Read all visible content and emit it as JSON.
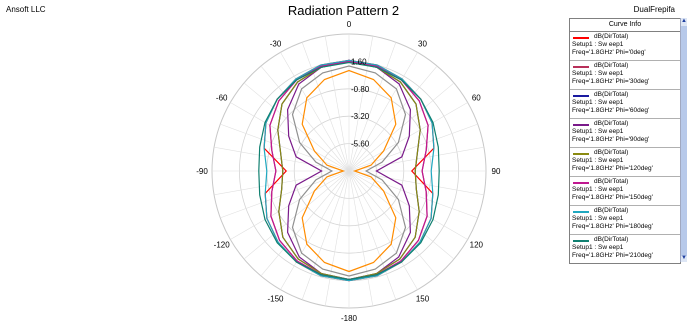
{
  "header": {
    "vendor": "Ansoft LLC",
    "project": "DualFrepifa"
  },
  "legend": {
    "title": "Curve Info",
    "entries": [
      {
        "name": "dB(DirTotal)",
        "setup": "Setup1 : Sw eep1",
        "params": "Freq='1.8GHz' Phi='0deg'",
        "color": "#ff0000"
      },
      {
        "name": "dB(DirTotal)",
        "setup": "Setup1 : Sw eep1",
        "params": "Freq='1.8GHz' Phi='30deg'",
        "color": "#b8305a"
      },
      {
        "name": "dB(DirTotal)",
        "setup": "Setup1 : Sw eep1",
        "params": "Freq='1.8GHz' Phi='60deg'",
        "color": "#1a1aa0"
      },
      {
        "name": "dB(DirTotal)",
        "setup": "Setup1 : Sw eep1",
        "params": "Freq='1.8GHz' Phi='90deg'",
        "color": "#7a1a8a"
      },
      {
        "name": "dB(DirTotal)",
        "setup": "Setup1 : Sw eep1",
        "params": "Freq='1.8GHz' Phi='120deg'",
        "color": "#8a8a10"
      },
      {
        "name": "dB(DirTotal)",
        "setup": "Setup1 : Sw eep1",
        "params": "Freq='1.8GHz' Phi='150deg'",
        "color": "#c01890"
      },
      {
        "name": "dB(DirTotal)",
        "setup": "Setup1 : Sw eep1",
        "params": "Freq='1.8GHz' Phi='180deg'",
        "color": "#20a8c0"
      },
      {
        "name": "dB(DirTotal)",
        "setup": "Setup1 : Sw eep1",
        "params": "Freq='1.8GHz' Phi='210deg'",
        "color": "#108070"
      }
    ]
  },
  "chart_data": {
    "type": "polar",
    "title": "Radiation Pattern 2",
    "radial_ticks": [
      "1.60",
      "-0.80",
      "-3.20",
      "-5.60"
    ],
    "radial_tick_values": [
      1.6,
      -0.8,
      -3.2,
      -5.6
    ],
    "rlim": [
      -8.0,
      4.0
    ],
    "angle_ticks": [
      "0",
      "30",
      "60",
      "90",
      "120",
      "150",
      "-180",
      "-150",
      "-120",
      "-90",
      "-60",
      "-30"
    ],
    "angle_tick_values": [
      0,
      30,
      60,
      90,
      120,
      150,
      180,
      -150,
      -120,
      -90,
      -60,
      -30
    ],
    "theta_deg": [
      -180,
      -165,
      -150,
      -135,
      -120,
      -105,
      -90,
      -75,
      -60,
      -45,
      -30,
      -15,
      0,
      15,
      30,
      45,
      60,
      75,
      90,
      105,
      120,
      135,
      150,
      165,
      180
    ],
    "series": [
      {
        "name": "dB(DirTotal) Setup1 : Sweep1 Freq='1.8GHz' Phi='0deg'",
        "color": "#ff0000",
        "values": [
          1.6,
          1.5,
          1.2,
          0.8,
          0.3,
          -0.4,
          -2.5,
          -0.3,
          0.4,
          0.9,
          1.3,
          1.6,
          1.7,
          1.6,
          1.3,
          0.9,
          0.4,
          -0.3,
          -2.5,
          -0.4,
          0.3,
          0.8,
          1.2,
          1.5,
          1.6
        ]
      },
      {
        "name": "dB(DirTotal) Setup1 : Sweep1 Freq='1.8GHz' Phi='30deg'",
        "color": "#b8305a",
        "values": [
          1.5,
          1.4,
          1.1,
          0.6,
          -0.1,
          -1.0,
          -1.6,
          -1.0,
          0.0,
          0.7,
          1.2,
          1.5,
          1.6,
          1.5,
          1.2,
          0.7,
          0.0,
          -1.0,
          -1.6,
          -1.0,
          -0.1,
          0.6,
          1.1,
          1.4,
          1.5
        ]
      },
      {
        "name": "dB(DirTotal) Setup1 : Sweep1 Freq='1.8GHz' Phi='60deg'",
        "color": "#1a1aa0",
        "values": [
          1.5,
          1.3,
          0.9,
          0.2,
          -0.9,
          -1.9,
          -2.2,
          -1.8,
          -0.8,
          0.3,
          1.0,
          1.4,
          1.6,
          1.4,
          1.0,
          0.3,
          -0.8,
          -1.8,
          -2.2,
          -1.9,
          -0.9,
          0.2,
          0.9,
          1.3,
          1.5
        ]
      },
      {
        "name": "dB(DirTotal) Setup1 : Sweep1 Freq='1.8GHz' Phi='90deg'",
        "color": "#7a1a8a",
        "values": [
          1.6,
          1.3,
          0.7,
          -0.4,
          -1.9,
          -3.2,
          -5.6,
          -3.2,
          -1.9,
          -0.4,
          0.8,
          1.4,
          1.7,
          1.4,
          0.8,
          -0.4,
          -1.9,
          -3.2,
          -5.6,
          -3.2,
          -1.9,
          -0.4,
          0.7,
          1.3,
          1.6
        ]
      },
      {
        "name": "dB(DirTotal) Setup1 : Sweep1 Freq='1.8GHz' Phi='120deg'",
        "color": "#8a8a10",
        "values": [
          1.5,
          1.3,
          0.9,
          0.2,
          -0.9,
          -1.9,
          -2.2,
          -1.8,
          -0.8,
          0.3,
          1.0,
          1.4,
          1.6,
          1.4,
          1.0,
          0.3,
          -0.8,
          -1.8,
          -2.2,
          -1.9,
          -0.9,
          0.2,
          0.9,
          1.3,
          1.5
        ]
      },
      {
        "name": "dB(DirTotal) Setup1 : Sweep1 Freq='1.8GHz' Phi='150deg'",
        "color": "#c01890",
        "values": [
          1.5,
          1.4,
          1.1,
          0.6,
          -0.1,
          -1.0,
          -1.6,
          -1.0,
          0.0,
          0.7,
          1.2,
          1.5,
          1.6,
          1.5,
          1.2,
          0.7,
          0.0,
          -1.0,
          -1.6,
          -1.0,
          -0.1,
          0.6,
          1.1,
          1.4,
          1.5
        ]
      },
      {
        "name": "dB(DirTotal) Setup1 : Sweep1 Freq='1.8GHz' Phi='180deg'",
        "color": "#20a8c0",
        "values": [
          1.6,
          1.5,
          1.2,
          0.8,
          0.3,
          -0.4,
          -0.8,
          -0.3,
          0.4,
          0.9,
          1.3,
          1.6,
          1.7,
          1.6,
          1.3,
          0.9,
          0.4,
          -0.3,
          -0.8,
          -0.4,
          0.3,
          0.8,
          1.2,
          1.5,
          1.6
        ]
      },
      {
        "name": "dB(DirTotal) Setup1 : Sweep1 Freq='1.8GHz' Phi='210deg'",
        "color": "#108070",
        "values": [
          1.5,
          1.4,
          1.2,
          0.9,
          0.5,
          0.1,
          -0.1,
          0.1,
          0.5,
          0.9,
          1.2,
          1.4,
          1.5,
          1.4,
          1.2,
          0.9,
          0.5,
          0.1,
          -0.1,
          0.1,
          0.5,
          0.9,
          1.2,
          1.4,
          1.5
        ]
      },
      {
        "name": "",
        "color": "#ff8c00",
        "values": [
          0.8,
          0.3,
          -0.6,
          -2.2,
          -4.5,
          -6.0,
          -7.5,
          -6.0,
          -4.5,
          -2.2,
          -0.6,
          0.3,
          0.8,
          0.3,
          -0.6,
          -2.2,
          -4.5,
          -6.0,
          -7.5,
          -6.0,
          -4.5,
          -2.2,
          -0.6,
          0.3,
          0.8
        ]
      },
      {
        "name": "",
        "color": "#909090",
        "values": [
          1.2,
          0.9,
          0.3,
          -1.0,
          -3.0,
          -5.0,
          -6.5,
          -5.0,
          -3.0,
          -1.0,
          0.3,
          0.9,
          1.2,
          0.9,
          0.3,
          -1.0,
          -3.0,
          -5.0,
          -6.5,
          -5.0,
          -3.0,
          -1.0,
          0.3,
          0.9,
          1.2
        ]
      }
    ]
  }
}
